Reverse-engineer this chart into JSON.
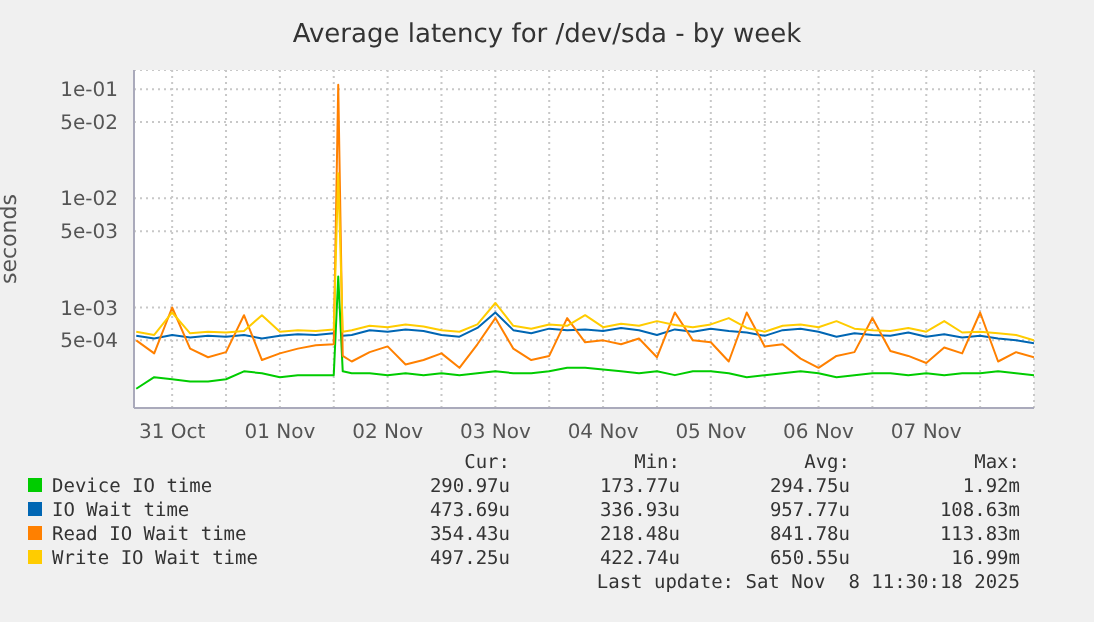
{
  "chart_data": {
    "type": "line",
    "title": "Average latency for /dev/sda - by week",
    "ylabel": "seconds",
    "log": "y",
    "grid": true,
    "legend": "bottom",
    "marker": "none",
    "line_style": "solid",
    "x": [
      "2025-10-31T04:00",
      "2025-10-31T08:00",
      "2025-10-31T12:00",
      "2025-10-31T16:00",
      "2025-10-31T20:00",
      "2025-11-01T00:00",
      "2025-11-01T04:00",
      "2025-11-01T08:00",
      "2025-11-01T12:00",
      "2025-11-01T16:00",
      "2025-11-01T20:00",
      "2025-11-02T00:00",
      "2025-11-02T01:00",
      "2025-11-02T02:00",
      "2025-11-02T04:00",
      "2025-11-02T08:00",
      "2025-11-02T12:00",
      "2025-11-02T16:00",
      "2025-11-02T20:00",
      "2025-11-03T00:00",
      "2025-11-03T04:00",
      "2025-11-03T08:00",
      "2025-11-03T12:00",
      "2025-11-03T16:00",
      "2025-11-03T20:00",
      "2025-11-04T00:00",
      "2025-11-04T04:00",
      "2025-11-04T08:00",
      "2025-11-04T12:00",
      "2025-11-04T16:00",
      "2025-11-04T20:00",
      "2025-11-05T00:00",
      "2025-11-05T04:00",
      "2025-11-05T08:00",
      "2025-11-05T12:00",
      "2025-11-05T16:00",
      "2025-11-05T20:00",
      "2025-11-06T00:00",
      "2025-11-06T04:00",
      "2025-11-06T08:00",
      "2025-11-06T12:00",
      "2025-11-06T16:00",
      "2025-11-06T20:00",
      "2025-11-07T00:00",
      "2025-11-07T04:00",
      "2025-11-07T08:00",
      "2025-11-07T12:00",
      "2025-11-07T16:00",
      "2025-11-07T20:00",
      "2025-11-08T00:00",
      "2025-11-08T04:00",
      "2025-11-08T08:00",
      "2025-11-08T12:00"
    ],
    "xlim": [
      "2025-10-31T03:30",
      "2025-11-08T12:00"
    ],
    "xticks": [
      {
        "value": "2025-10-31T12:00",
        "label": "31 Oct"
      },
      {
        "value": "2025-11-01T00:00",
        "label": null
      },
      {
        "value": "2025-11-01T12:00",
        "label": "01 Nov"
      },
      {
        "value": "2025-11-02T00:00",
        "label": null
      },
      {
        "value": "2025-11-02T12:00",
        "label": "02 Nov"
      },
      {
        "value": "2025-11-03T00:00",
        "label": null
      },
      {
        "value": "2025-11-03T12:00",
        "label": "03 Nov"
      },
      {
        "value": "2025-11-04T00:00",
        "label": null
      },
      {
        "value": "2025-11-04T12:00",
        "label": "04 Nov"
      },
      {
        "value": "2025-11-05T00:00",
        "label": null
      },
      {
        "value": "2025-11-05T12:00",
        "label": "05 Nov"
      },
      {
        "value": "2025-11-06T00:00",
        "label": null
      },
      {
        "value": "2025-11-06T12:00",
        "label": "06 Nov"
      },
      {
        "value": "2025-11-07T00:00",
        "label": null
      },
      {
        "value": "2025-11-07T12:00",
        "label": "07 Nov"
      },
      {
        "value": "2025-11-08T00:00",
        "label": null
      }
    ],
    "ylim": [
      0.00012,
      0.15
    ],
    "yticks": [
      {
        "value": 0.0005,
        "label": "5e-04"
      },
      {
        "value": 0.001,
        "label": "1e-03"
      },
      {
        "value": 0.005,
        "label": "5e-03"
      },
      {
        "value": 0.01,
        "label": "1e-02"
      },
      {
        "value": 0.05,
        "label": "5e-02"
      },
      {
        "value": 0.1,
        "label": "1e-01"
      }
    ],
    "series": [
      {
        "name": "Device IO time",
        "color": "#00cc00",
        "values": [
          0.00018,
          0.00023,
          0.00022,
          0.00021,
          0.00021,
          0.00022,
          0.00026,
          0.00025,
          0.00023,
          0.00024,
          0.00024,
          0.00024,
          0.00192,
          0.00026,
          0.00025,
          0.00025,
          0.00024,
          0.00025,
          0.00024,
          0.00025,
          0.00024,
          0.00025,
          0.00026,
          0.00025,
          0.00025,
          0.00026,
          0.00028,
          0.00028,
          0.00027,
          0.00026,
          0.00025,
          0.00026,
          0.00024,
          0.00026,
          0.00026,
          0.00025,
          0.00023,
          0.00024,
          0.00025,
          0.00026,
          0.00025,
          0.00023,
          0.00024,
          0.00025,
          0.00025,
          0.00024,
          0.00025,
          0.00024,
          0.00025,
          0.00025,
          0.00026,
          0.00025,
          0.00024
        ]
      },
      {
        "name": "IO Wait time",
        "color": "#0066b3",
        "values": [
          0.00055,
          0.00052,
          0.00056,
          0.00053,
          0.00055,
          0.00054,
          0.00056,
          0.00052,
          0.00055,
          0.00057,
          0.00056,
          0.00058,
          null,
          0.00055,
          0.00056,
          0.00062,
          0.0006,
          0.00063,
          0.00061,
          0.00056,
          0.00054,
          0.00065,
          0.0009,
          0.00062,
          0.00058,
          0.00064,
          0.00062,
          0.00063,
          0.00061,
          0.00065,
          0.00062,
          0.00056,
          0.00063,
          0.0006,
          0.00064,
          0.00061,
          0.00059,
          0.00055,
          0.00062,
          0.00064,
          0.0006,
          0.00054,
          0.00058,
          0.00056,
          0.00055,
          0.00059,
          0.00054,
          0.00057,
          0.00053,
          0.00055,
          0.00052,
          0.0005,
          0.00047
        ]
      },
      {
        "name": "Read IO Wait time",
        "color": "#ff8000",
        "values": [
          0.0005,
          0.00038,
          0.001,
          0.00042,
          0.00035,
          0.00039,
          0.00085,
          0.00033,
          0.00038,
          0.00042,
          0.00045,
          0.00046,
          0.11,
          0.00036,
          0.00032,
          0.00039,
          0.00044,
          0.0003,
          0.00033,
          0.00038,
          0.00028,
          0.00046,
          0.0008,
          0.00042,
          0.00033,
          0.00036,
          0.0008,
          0.00048,
          0.0005,
          0.00046,
          0.00052,
          0.00035,
          0.0009,
          0.0005,
          0.00048,
          0.00032,
          0.0009,
          0.00044,
          0.00046,
          0.00034,
          0.00028,
          0.00036,
          0.00039,
          0.0008,
          0.0004,
          0.00036,
          0.00031,
          0.00043,
          0.00038,
          0.0009,
          0.00032,
          0.00039,
          0.00035
        ]
      },
      {
        "name": "Write IO Wait time",
        "color": "#ffcc00",
        "values": [
          0.0006,
          0.00056,
          0.0009,
          0.00058,
          0.0006,
          0.00059,
          0.00061,
          0.00085,
          0.0006,
          0.00062,
          0.00061,
          0.00063,
          0.017,
          0.0006,
          0.00062,
          0.00068,
          0.00066,
          0.0007,
          0.00067,
          0.00062,
          0.0006,
          0.0007,
          0.0011,
          0.00068,
          0.00064,
          0.0007,
          0.00068,
          0.00085,
          0.00066,
          0.00071,
          0.00068,
          0.00075,
          0.00069,
          0.00066,
          0.0007,
          0.0008,
          0.00065,
          0.0006,
          0.00068,
          0.0007,
          0.00066,
          0.00075,
          0.00064,
          0.00062,
          0.00061,
          0.00065,
          0.0006,
          0.00075,
          0.00059,
          0.0006,
          0.00058,
          0.00056,
          0.0005
        ]
      }
    ],
    "annotations": [
      "Cur:",
      "Min:",
      "Avg:",
      "Max:",
      "290.97u",
      "173.77u",
      "294.75u",
      "1.92m",
      "473.69u",
      "336.93u",
      "957.77u",
      "108.63m",
      "354.43u",
      "218.48u",
      "841.78u",
      "113.83m",
      "497.25u",
      "422.74u",
      "650.55u",
      "16.99m",
      "Last update: Sat Nov  8 11:30:18 2025"
    ]
  }
}
